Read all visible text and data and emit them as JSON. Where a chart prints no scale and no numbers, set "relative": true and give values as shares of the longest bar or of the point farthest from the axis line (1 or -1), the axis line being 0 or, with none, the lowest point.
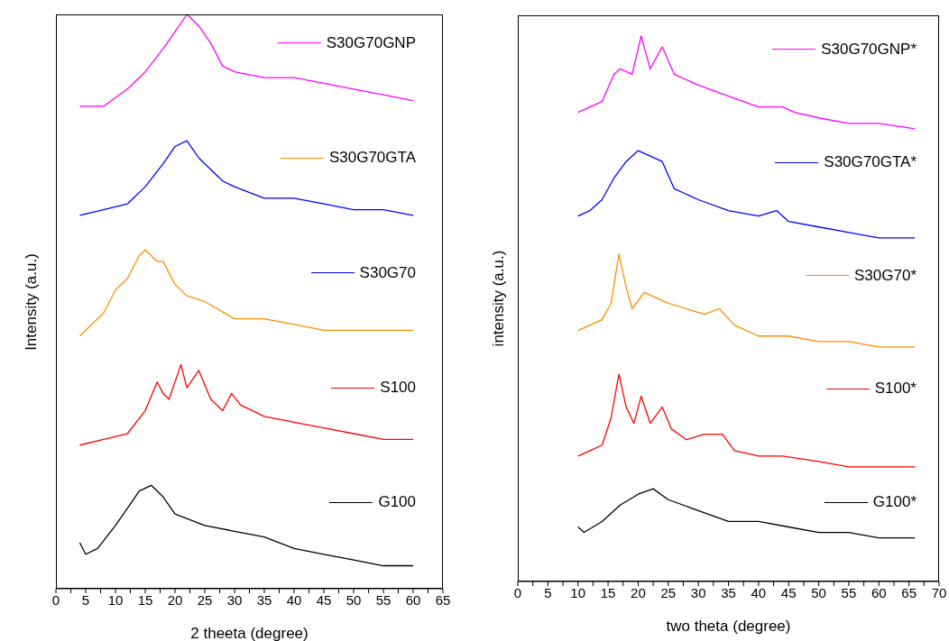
{
  "chart_data": [
    {
      "type": "line",
      "relative": true,
      "xlabel": "2 theeta (degree)",
      "ylabel": "Intensity (a.u.)",
      "xlim": [
        0,
        65
      ],
      "xticks": [
        0,
        {
          "value": 2.5,
          "label": null
        },
        5,
        {
          "value": 7.5,
          "label": null
        },
        10,
        {
          "value": 12.5,
          "label": null
        },
        15,
        {
          "value": 17.5,
          "label": null
        },
        20,
        {
          "value": 22.5,
          "label": null
        },
        25,
        {
          "value": 27.5,
          "label": null
        },
        30,
        {
          "value": 32.5,
          "label": null
        },
        35,
        {
          "value": 37.5,
          "label": null
        },
        40,
        {
          "value": 42.5,
          "label": null
        },
        45,
        {
          "value": 47.5,
          "label": null
        },
        50,
        {
          "value": 52.5,
          "label": null
        },
        55,
        {
          "value": 57.5,
          "label": null
        },
        60,
        {
          "value": 62.5,
          "label": null
        },
        65
      ],
      "tick_labels": "x",
      "legend": "right",
      "marker": "none",
      "series": [
        {
          "name": "S30G70GNP",
          "color": "#ff00ff",
          "x": [
            4,
            8,
            12,
            15,
            18,
            20,
            22,
            24,
            26,
            28,
            30,
            35,
            40,
            45,
            50,
            55,
            60
          ],
          "values": [
            0.84,
            0.84,
            0.87,
            0.9,
            0.94,
            0.97,
            1,
            0.98,
            0.95,
            0.91,
            0.9,
            0.89,
            0.89,
            0.88,
            0.87,
            0.86,
            0.85
          ]
        },
        {
          "name": "S30G70GTA",
          "color": "#ff8c00",
          "x": [
            4,
            6,
            8,
            10,
            12,
            14,
            15,
            17,
            18,
            20,
            22,
            25,
            30,
            35,
            40,
            45,
            50,
            55,
            60
          ],
          "values": [
            0.44,
            0.46,
            0.48,
            0.52,
            0.54,
            0.58,
            0.59,
            0.57,
            0.57,
            0.53,
            0.51,
            0.5,
            0.47,
            0.47,
            0.46,
            0.45,
            0.45,
            0.45,
            0.45
          ]
        },
        {
          "name": "S30G70",
          "color": "#0000ff",
          "x": [
            4,
            8,
            12,
            15,
            18,
            20,
            22,
            24,
            26,
            28,
            30,
            35,
            40,
            45,
            50,
            55,
            60
          ],
          "values": [
            0.65,
            0.66,
            0.67,
            0.7,
            0.74,
            0.77,
            0.78,
            0.75,
            0.73,
            0.71,
            0.7,
            0.68,
            0.68,
            0.67,
            0.66,
            0.66,
            0.65
          ]
        },
        {
          "name": "S100",
          "color": "#ff0000",
          "x": [
            4,
            8,
            12,
            15,
            17,
            18,
            19,
            21,
            22,
            24,
            26,
            28,
            29.5,
            31,
            35,
            40,
            45,
            50,
            55,
            60
          ],
          "values": [
            0.25,
            0.26,
            0.27,
            0.31,
            0.36,
            0.34,
            0.33,
            0.39,
            0.35,
            0.38,
            0.33,
            0.31,
            0.34,
            0.32,
            0.3,
            0.29,
            0.28,
            0.27,
            0.26,
            0.26
          ]
        },
        {
          "name": "G100",
          "color": "#000000",
          "x": [
            4,
            5,
            7,
            10,
            12,
            14,
            16,
            18,
            20,
            25,
            30,
            35,
            40,
            45,
            50,
            55,
            60
          ],
          "values": [
            0.08,
            0.06,
            0.07,
            0.11,
            0.14,
            0.17,
            0.18,
            0.16,
            0.13,
            0.11,
            0.1,
            0.09,
            0.07,
            0.06,
            0.05,
            0.04,
            0.04
          ]
        }
      ]
    },
    {
      "type": "line",
      "relative": true,
      "xlabel": "two theta (degree)",
      "ylabel": "intensity (a.u.)",
      "xlim": [
        0,
        70
      ],
      "xticks": [
        0,
        {
          "value": 2.5,
          "label": null
        },
        5,
        {
          "value": 7.5,
          "label": null
        },
        10,
        {
          "value": 12.5,
          "label": null
        },
        15,
        {
          "value": 17.5,
          "label": null
        },
        20,
        {
          "value": 22.5,
          "label": null
        },
        25,
        {
          "value": 27.5,
          "label": null
        },
        30,
        {
          "value": 32.5,
          "label": null
        },
        35,
        {
          "value": 37.5,
          "label": null
        },
        40,
        {
          "value": 42.5,
          "label": null
        },
        45,
        {
          "value": 47.5,
          "label": null
        },
        50,
        {
          "value": 52.5,
          "label": null
        },
        55,
        {
          "value": 57.5,
          "label": null
        },
        60,
        {
          "value": 62.5,
          "label": null
        },
        65,
        {
          "value": 67.5,
          "label": null
        },
        70
      ],
      "tick_labels": "x",
      "legend": "right",
      "marker": "none",
      "series": [
        {
          "name": "S30G70GNP*",
          "color": "#ff00ff",
          "x": [
            10,
            12,
            14,
            16,
            17,
            19,
            20.5,
            22,
            24,
            26,
            30,
            35,
            40,
            44,
            46,
            50,
            55,
            60,
            66
          ],
          "values": [
            0.86,
            0.87,
            0.88,
            0.93,
            0.94,
            0.93,
            1,
            0.94,
            0.98,
            0.93,
            0.91,
            0.89,
            0.87,
            0.87,
            0.86,
            0.85,
            0.84,
            0.84,
            0.83
          ]
        },
        {
          "name": "S30G70GTA*",
          "color": "#0000ff",
          "x": [
            10,
            12,
            14,
            16,
            18,
            20,
            22,
            24,
            26,
            30,
            35,
            40,
            43,
            45,
            50,
            55,
            60,
            66
          ],
          "values": [
            0.67,
            0.68,
            0.7,
            0.74,
            0.77,
            0.79,
            0.78,
            0.77,
            0.72,
            0.7,
            0.68,
            0.67,
            0.68,
            0.66,
            0.65,
            0.64,
            0.63,
            0.63
          ]
        },
        {
          "name": "S30G70*",
          "color": "#ff8c00",
          "x": [
            10,
            12,
            14,
            15.5,
            16.8,
            18,
            19,
            21,
            23,
            25,
            28,
            31,
            33.5,
            36,
            40,
            45,
            50,
            55,
            60,
            66
          ],
          "values": [
            0.46,
            0.47,
            0.48,
            0.51,
            0.6,
            0.54,
            0.5,
            0.53,
            0.52,
            0.51,
            0.5,
            0.49,
            0.5,
            0.47,
            0.45,
            0.45,
            0.44,
            0.44,
            0.43,
            0.43
          ]
        },
        {
          "name": "S100*",
          "color": "#ff0000",
          "x": [
            10,
            12,
            14,
            15.5,
            16.8,
            18,
            19.3,
            20.5,
            22,
            24,
            25.5,
            28,
            31,
            34,
            36,
            40,
            44,
            50,
            55,
            60,
            66
          ],
          "values": [
            0.23,
            0.24,
            0.25,
            0.3,
            0.38,
            0.32,
            0.29,
            0.34,
            0.29,
            0.32,
            0.28,
            0.26,
            0.27,
            0.27,
            0.24,
            0.23,
            0.23,
            0.22,
            0.21,
            0.21,
            0.21
          ]
        },
        {
          "name": "G100*",
          "color": "#000000",
          "x": [
            10,
            11,
            14,
            17,
            20,
            22.5,
            25,
            30,
            35,
            40,
            45,
            50,
            55,
            60,
            66
          ],
          "values": [
            0.1,
            0.09,
            0.11,
            0.14,
            0.16,
            0.17,
            0.15,
            0.13,
            0.11,
            0.11,
            0.1,
            0.09,
            0.09,
            0.08,
            0.08
          ]
        }
      ]
    }
  ]
}
